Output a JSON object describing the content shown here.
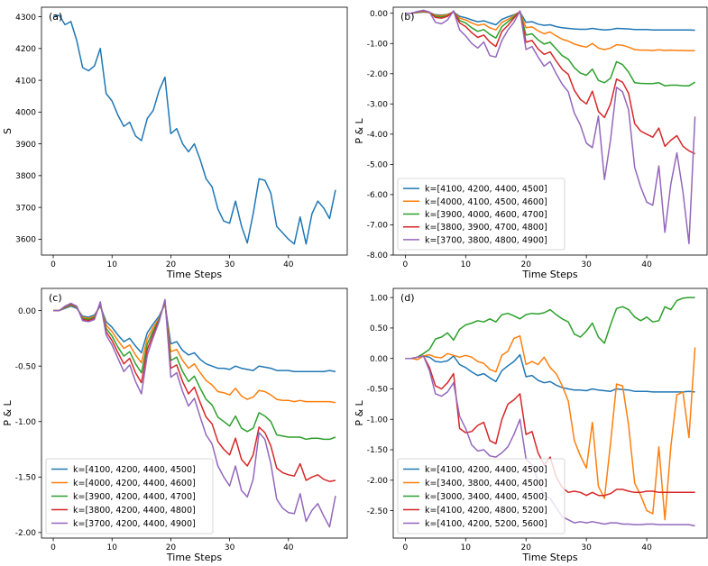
{
  "chart_data": [
    {
      "type": "line",
      "panel": "(a)",
      "title": "",
      "xlabel": "Time Steps",
      "ylabel": "S",
      "xlim": [
        -2,
        50
      ],
      "ylim": [
        3550,
        4330
      ],
      "xticks": [
        0,
        10,
        20,
        30,
        40
      ],
      "yticks": [
        3600,
        3700,
        3800,
        3900,
        4000,
        4100,
        4200,
        4300
      ],
      "ytick_labels": [
        "3600",
        "3700",
        "3800",
        "3900",
        "4000",
        "4100",
        "4200",
        "4300"
      ],
      "legend": null,
      "series": [
        {
          "name": "S",
          "color": "#1f77b4",
          "values": [
            4300,
            4305,
            4275,
            4285,
            4225,
            4140,
            4130,
            4145,
            4200,
            4058,
            4035,
            3990,
            3955,
            3968,
            3925,
            3910,
            3980,
            4005,
            4068,
            4110,
            3932,
            3948,
            3900,
            3875,
            3900,
            3850,
            3790,
            3765,
            3695,
            3657,
            3650,
            3720,
            3642,
            3588,
            3680,
            3790,
            3785,
            3745,
            3640,
            3620,
            3600,
            3585,
            3670,
            3585,
            3680,
            3720,
            3698,
            3665,
            3755
          ]
        }
      ]
    },
    {
      "type": "line",
      "panel": "(b)",
      "title": "",
      "xlabel": "Time Steps",
      "ylabel": "P & L",
      "xlim": [
        -2,
        50
      ],
      "ylim": [
        -8.0,
        0.2
      ],
      "xticks": [
        0,
        10,
        20,
        30,
        40
      ],
      "yticks": [
        0,
        -1,
        -2,
        -3,
        -4,
        -5,
        -6,
        -7,
        -8
      ],
      "ytick_labels": [
        "0.00",
        "-1.00",
        "-2.00",
        "-3.00",
        "-4.00",
        "-5.00",
        "-6.00",
        "-7.00",
        "-8.00"
      ],
      "legend": "lower-left",
      "series": [
        {
          "name": "k=[4100, 4200, 4400, 4500]",
          "color": "#1f77b4",
          "values": [
            0,
            0,
            0.02,
            0.04,
            0.02,
            -0.05,
            -0.06,
            -0.04,
            0.04,
            -0.1,
            -0.15,
            -0.22,
            -0.28,
            -0.25,
            -0.32,
            -0.38,
            -0.2,
            -0.12,
            -0.05,
            0.04,
            -0.3,
            -0.28,
            -0.36,
            -0.4,
            -0.38,
            -0.44,
            -0.48,
            -0.5,
            -0.52,
            -0.53,
            -0.53,
            -0.5,
            -0.53,
            -0.55,
            -0.54,
            -0.5,
            -0.51,
            -0.52,
            -0.54,
            -0.54,
            -0.54,
            -0.55,
            -0.55,
            -0.55,
            -0.55,
            -0.55,
            -0.55,
            -0.55,
            -0.56
          ]
        },
        {
          "name": "k=[4000, 4100, 4500, 4600]",
          "color": "#ff7f0e",
          "values": [
            0,
            0,
            0.03,
            0.05,
            0.02,
            -0.07,
            -0.08,
            -0.05,
            0.05,
            -0.16,
            -0.22,
            -0.32,
            -0.4,
            -0.36,
            -0.48,
            -0.55,
            -0.3,
            -0.2,
            -0.08,
            0.05,
            -0.48,
            -0.45,
            -0.58,
            -0.68,
            -0.62,
            -0.75,
            -0.86,
            -0.92,
            -1.02,
            -1.08,
            -1.12,
            -1.0,
            -1.15,
            -1.2,
            -1.15,
            -1.04,
            -1.06,
            -1.12,
            -1.2,
            -1.22,
            -1.22,
            -1.23,
            -1.21,
            -1.23,
            -1.22,
            -1.23,
            -1.23,
            -1.24,
            -1.24
          ]
        },
        {
          "name": "k=[3900, 4000, 4600, 4700]",
          "color": "#2ca02c",
          "values": [
            0,
            0,
            0.04,
            0.07,
            0.03,
            -0.1,
            -0.12,
            -0.08,
            0.06,
            -0.24,
            -0.32,
            -0.48,
            -0.6,
            -0.54,
            -0.7,
            -0.82,
            -0.44,
            -0.28,
            -0.12,
            0.06,
            -0.72,
            -0.68,
            -0.88,
            -1.02,
            -0.96,
            -1.18,
            -1.4,
            -1.52,
            -1.8,
            -1.98,
            -2.05,
            -1.85,
            -2.22,
            -2.3,
            -2.15,
            -1.6,
            -1.7,
            -1.95,
            -2.3,
            -2.32,
            -2.33,
            -2.33,
            -2.3,
            -2.4,
            -2.38,
            -2.38,
            -2.4,
            -2.4,
            -2.28
          ]
        },
        {
          "name": "k=[3800, 3900, 4700, 4800]",
          "color": "#d62728",
          "values": [
            0,
            0,
            0.05,
            0.08,
            0.03,
            -0.14,
            -0.16,
            -0.1,
            0.07,
            -0.32,
            -0.44,
            -0.64,
            -0.8,
            -0.72,
            -0.95,
            -1.1,
            -0.6,
            -0.4,
            -0.16,
            0.07,
            -0.96,
            -0.9,
            -1.18,
            -1.36,
            -1.28,
            -1.58,
            -1.86,
            -2.02,
            -2.55,
            -2.85,
            -3.0,
            -2.58,
            -3.25,
            -3.45,
            -3.0,
            -2.18,
            -2.28,
            -2.65,
            -3.65,
            -3.9,
            -4.0,
            -4.1,
            -3.8,
            -4.4,
            -4.2,
            -4.05,
            -4.4,
            -4.55,
            -4.65
          ]
        },
        {
          "name": "k=[3700, 3800, 4800, 4900]",
          "color": "#9467bd",
          "values": [
            0,
            0,
            0.06,
            0.1,
            0.04,
            -0.3,
            -0.35,
            -0.22,
            0.08,
            -0.55,
            -0.75,
            -1.0,
            -1.15,
            -0.95,
            -1.4,
            -1.45,
            -0.9,
            -0.55,
            -0.3,
            0.08,
            -1.2,
            -1.1,
            -1.45,
            -1.75,
            -1.6,
            -2.0,
            -2.35,
            -2.6,
            -3.3,
            -3.7,
            -4.3,
            -4.45,
            -3.4,
            -5.5,
            -4.2,
            -2.45,
            -2.6,
            -3.2,
            -5.1,
            -5.75,
            -6.25,
            -6.35,
            -5.05,
            -7.25,
            -5.65,
            -4.62,
            -5.9,
            -7.62,
            -3.42
          ]
        }
      ]
    },
    {
      "type": "line",
      "panel": "(c)",
      "title": "",
      "xlabel": "Time Steps",
      "ylabel": "P & L",
      "xlim": [
        -2,
        50
      ],
      "ylim": [
        -2.05,
        0.2
      ],
      "xticks": [
        0,
        10,
        20,
        30,
        40
      ],
      "yticks": [
        0,
        -0.5,
        -1.0,
        -1.5,
        -2.0
      ],
      "ytick_labels": [
        "0.00",
        "-0.50",
        "-1.00",
        "-1.50",
        "-2.00"
      ],
      "legend": "lower-left",
      "series": [
        {
          "name": "k=[4100, 4200, 4400, 4500]",
          "color": "#1f77b4",
          "values": [
            0,
            0,
            0.02,
            0.04,
            0.02,
            -0.05,
            -0.06,
            -0.04,
            0.04,
            -0.1,
            -0.15,
            -0.22,
            -0.28,
            -0.25,
            -0.32,
            -0.38,
            -0.2,
            -0.12,
            -0.05,
            0.06,
            -0.3,
            -0.28,
            -0.36,
            -0.4,
            -0.38,
            -0.44,
            -0.48,
            -0.5,
            -0.52,
            -0.52,
            -0.53,
            -0.5,
            -0.52,
            -0.53,
            -0.54,
            -0.5,
            -0.51,
            -0.52,
            -0.54,
            -0.54,
            -0.54,
            -0.55,
            -0.55,
            -0.55,
            -0.55,
            -0.55,
            -0.55,
            -0.54,
            -0.55
          ]
        },
        {
          "name": "k=[4000, 4200, 4400, 4600]",
          "color": "#ff7f0e",
          "values": [
            0,
            0,
            0.025,
            0.05,
            0.025,
            -0.06,
            -0.07,
            -0.05,
            0.05,
            -0.13,
            -0.19,
            -0.27,
            -0.34,
            -0.31,
            -0.4,
            -0.47,
            -0.25,
            -0.15,
            -0.07,
            0.07,
            -0.37,
            -0.35,
            -0.45,
            -0.52,
            -0.48,
            -0.56,
            -0.63,
            -0.67,
            -0.73,
            -0.74,
            -0.76,
            -0.7,
            -0.77,
            -0.8,
            -0.78,
            -0.72,
            -0.73,
            -0.76,
            -0.8,
            -0.81,
            -0.81,
            -0.82,
            -0.81,
            -0.82,
            -0.82,
            -0.82,
            -0.82,
            -0.82,
            -0.83
          ]
        },
        {
          "name": "k=[3900, 4200, 4400, 4700]",
          "color": "#2ca02c",
          "values": [
            0,
            0,
            0.03,
            0.055,
            0.03,
            -0.07,
            -0.08,
            -0.06,
            0.06,
            -0.16,
            -0.23,
            -0.33,
            -0.41,
            -0.37,
            -0.48,
            -0.56,
            -0.3,
            -0.18,
            -0.08,
            0.08,
            -0.45,
            -0.42,
            -0.55,
            -0.64,
            -0.59,
            -0.7,
            -0.8,
            -0.85,
            -0.96,
            -1.0,
            -1.04,
            -0.95,
            -1.06,
            -1.09,
            -1.06,
            -0.92,
            -0.95,
            -1.0,
            -1.12,
            -1.13,
            -1.14,
            -1.14,
            -1.14,
            -1.16,
            -1.15,
            -1.15,
            -1.16,
            -1.16,
            -1.14
          ]
        },
        {
          "name": "k=[3800, 4200, 4400, 4800]",
          "color": "#d62728",
          "values": [
            0,
            0,
            0.035,
            0.06,
            0.035,
            -0.08,
            -0.09,
            -0.07,
            0.07,
            -0.19,
            -0.27,
            -0.38,
            -0.48,
            -0.43,
            -0.56,
            -0.65,
            -0.35,
            -0.21,
            -0.09,
            0.09,
            -0.52,
            -0.49,
            -0.64,
            -0.75,
            -0.69,
            -0.83,
            -0.96,
            -1.02,
            -1.18,
            -1.25,
            -1.3,
            -1.15,
            -1.34,
            -1.4,
            -1.3,
            -1.05,
            -1.1,
            -1.22,
            -1.42,
            -1.46,
            -1.48,
            -1.49,
            -1.38,
            -1.53,
            -1.5,
            -1.48,
            -1.52,
            -1.54,
            -1.53
          ]
        },
        {
          "name": "k=[3700, 4200, 4400, 4900]",
          "color": "#9467bd",
          "values": [
            0,
            0,
            0.04,
            0.065,
            0.04,
            -0.09,
            -0.1,
            -0.08,
            0.08,
            -0.22,
            -0.31,
            -0.43,
            -0.55,
            -0.49,
            -0.64,
            -0.75,
            -0.4,
            -0.24,
            -0.1,
            0.1,
            -0.6,
            -0.56,
            -0.73,
            -0.86,
            -0.79,
            -0.96,
            -1.12,
            -1.2,
            -1.4,
            -1.5,
            -1.58,
            -1.4,
            -1.62,
            -1.68,
            -1.52,
            -1.1,
            -1.16,
            -1.38,
            -1.7,
            -1.78,
            -1.82,
            -1.83,
            -1.65,
            -1.9,
            -1.8,
            -1.74,
            -1.85,
            -1.95,
            -1.67
          ]
        }
      ]
    },
    {
      "type": "line",
      "panel": "(d)",
      "title": "",
      "xlabel": "Time Steps",
      "ylabel": "P & L",
      "xlim": [
        -2,
        50
      ],
      "ylim": [
        -2.95,
        1.15
      ],
      "xticks": [
        0,
        10,
        20,
        30,
        40
      ],
      "yticks": [
        1.0,
        0.5,
        0,
        -0.5,
        -1.0,
        -1.5,
        -2.0,
        -2.5
      ],
      "ytick_labels": [
        "1.00",
        "0.50",
        "0.00",
        "-0.50",
        "-1.00",
        "-1.50",
        "-2.00",
        "-2.50"
      ],
      "legend": "lower-left",
      "series": [
        {
          "name": "k=[4100, 4200, 4400, 4500]",
          "color": "#1f77b4",
          "values": [
            0,
            0,
            0.02,
            0.04,
            0.02,
            -0.05,
            -0.06,
            -0.04,
            0.04,
            -0.1,
            -0.15,
            -0.22,
            -0.28,
            -0.25,
            -0.32,
            -0.38,
            -0.2,
            -0.12,
            -0.05,
            0.06,
            -0.3,
            -0.28,
            -0.36,
            -0.4,
            -0.38,
            -0.44,
            -0.48,
            -0.5,
            -0.52,
            -0.52,
            -0.53,
            -0.5,
            -0.52,
            -0.53,
            -0.54,
            -0.5,
            -0.51,
            -0.52,
            -0.54,
            -0.54,
            -0.54,
            -0.55,
            -0.55,
            -0.55,
            -0.55,
            -0.55,
            -0.55,
            -0.54,
            -0.55
          ]
        },
        {
          "name": "k=[3400, 3800, 4400, 4500]",
          "color": "#ff7f0e",
          "values": [
            0,
            0,
            -0.02,
            0.04,
            0.06,
            0.02,
            0.01,
            0.08,
            0.05,
            0.02,
            0.05,
            0.02,
            -0.05,
            -0.08,
            -0.18,
            -0.22,
            0.05,
            0.12,
            0.33,
            0.37,
            -0.1,
            -0.05,
            -0.1,
            0.02,
            -0.15,
            -0.25,
            -0.45,
            -0.7,
            -1.35,
            -1.6,
            -1.8,
            -1.05,
            -2.1,
            -2.3,
            -1.4,
            -0.42,
            -0.45,
            -1.1,
            -2.05,
            -2.25,
            -2.5,
            -2.55,
            -1.45,
            -2.65,
            -1.45,
            -0.6,
            -0.55,
            -1.3,
            0.18
          ]
        },
        {
          "name": "k=[3000, 3400, 4400, 4500]",
          "color": "#2ca02c",
          "values": [
            0,
            0,
            0.02,
            0.08,
            0.15,
            0.32,
            0.35,
            0.42,
            0.3,
            0.48,
            0.55,
            0.58,
            0.62,
            0.6,
            0.65,
            0.6,
            0.72,
            0.74,
            0.7,
            0.65,
            0.72,
            0.74,
            0.73,
            0.75,
            0.8,
            0.72,
            0.65,
            0.6,
            0.4,
            0.35,
            0.45,
            0.58,
            0.35,
            0.25,
            0.55,
            0.82,
            0.85,
            0.8,
            0.68,
            0.62,
            0.68,
            0.6,
            0.62,
            0.85,
            0.8,
            0.95,
            0.99,
            1.0,
            1.0
          ]
        },
        {
          "name": "k=[4100, 4200, 4800, 5200]",
          "color": "#d62728",
          "values": [
            0,
            0,
            0.02,
            0.04,
            -0.15,
            -0.45,
            -0.5,
            -0.4,
            -0.25,
            -1.15,
            -1.22,
            -1.2,
            -1.1,
            -1.05,
            -1.35,
            -1.4,
            -1.0,
            -0.75,
            -0.68,
            -0.58,
            -1.25,
            -1.2,
            -1.55,
            -1.75,
            -1.62,
            -1.95,
            -2.12,
            -2.2,
            -2.18,
            -2.2,
            -2.25,
            -2.2,
            -2.25,
            -2.25,
            -2.22,
            -2.15,
            -2.15,
            -2.18,
            -2.2,
            -2.2,
            -2.18,
            -2.18,
            -2.2,
            -2.2,
            -2.2,
            -2.2,
            -2.2,
            -2.2,
            -2.2
          ]
        },
        {
          "name": "k=[4100, 4200, 5200, 5600]",
          "color": "#9467bd",
          "values": [
            0,
            0,
            0.02,
            0.04,
            -0.2,
            -0.58,
            -0.62,
            -0.55,
            -0.4,
            -0.95,
            -1.15,
            -1.42,
            -1.52,
            -1.5,
            -1.6,
            -1.62,
            -1.55,
            -1.45,
            -1.25,
            -1.0,
            -1.65,
            -1.75,
            -2.0,
            -2.25,
            -2.3,
            -2.45,
            -2.6,
            -2.65,
            -2.7,
            -2.68,
            -2.7,
            -2.68,
            -2.7,
            -2.72,
            -2.7,
            -2.7,
            -2.72,
            -2.72,
            -2.73,
            -2.73,
            -2.72,
            -2.72,
            -2.73,
            -2.73,
            -2.73,
            -2.73,
            -2.73,
            -2.73,
            -2.75
          ]
        }
      ]
    }
  ]
}
